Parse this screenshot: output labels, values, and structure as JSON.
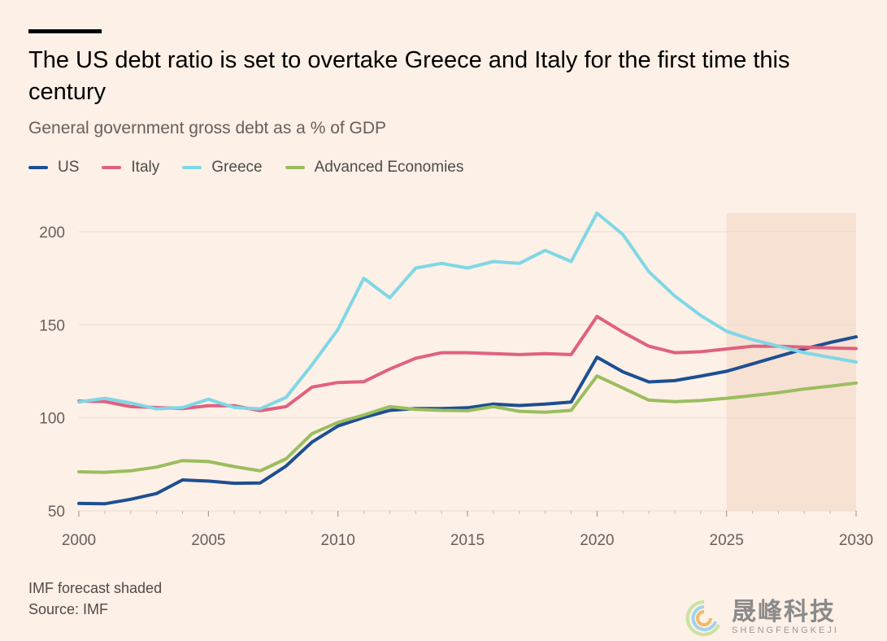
{
  "title": "The US debt ratio is set to overtake Greece and Italy for the first time this century",
  "subtitle": "General government gross debt as a % of GDP",
  "footnote": {
    "line1": "IMF forecast shaded",
    "line2": "Source: IMF"
  },
  "watermark": {
    "chinese": "晟峰科技",
    "english": "SHENGFENGKEJI"
  },
  "colors": {
    "background": "#fdf0e6",
    "grid": "#e8ddd4",
    "forecast_shade": "#f7e1d3",
    "US": "#1d4f91",
    "Italy": "#e0617f",
    "Greece": "#7fd7e6",
    "Advanced Economies": "#9bbd5e"
  },
  "chart_data": {
    "type": "line",
    "title": "The US debt ratio is set to overtake Greece and Italy for the first time this century",
    "subtitle": "General government gross debt as a % of GDP",
    "xlabel": "",
    "ylabel": "",
    "x": [
      2000,
      2001,
      2002,
      2003,
      2004,
      2005,
      2006,
      2007,
      2008,
      2009,
      2010,
      2011,
      2012,
      2013,
      2014,
      2015,
      2016,
      2017,
      2018,
      2019,
      2020,
      2021,
      2022,
      2023,
      2024,
      2025,
      2026,
      2027,
      2028,
      2029,
      2030
    ],
    "xlim": [
      2000,
      2030
    ],
    "ylim": [
      50,
      210
    ],
    "x_ticks": [
      "2000",
      "2005",
      "2010",
      "2015",
      "2020",
      "2025",
      "2030"
    ],
    "x_tick_values": [
      2000,
      2005,
      2010,
      2015,
      2020,
      2025,
      2030
    ],
    "y_ticks": [
      "50",
      "100",
      "150",
      "200"
    ],
    "y_tick_values": [
      50,
      100,
      150,
      200
    ],
    "grid": true,
    "legend_position": "top-left",
    "forecast_shaded": [
      2025,
      2030
    ],
    "series": [
      {
        "name": "US",
        "values": [
          54,
          53.8,
          56.2,
          59.3,
          66.6,
          66,
          64.8,
          65,
          74.1,
          87,
          95.6,
          100.2,
          104,
          105,
          105,
          105.4,
          107.4,
          106.6,
          107.4,
          108.5,
          132.6,
          124.7,
          119.3,
          120,
          122.4,
          125,
          129,
          133,
          137,
          140.5,
          143.5
        ]
      },
      {
        "name": "Italy",
        "values": [
          109,
          108.7,
          106,
          105.5,
          105,
          106.5,
          106.5,
          103.8,
          106,
          116.5,
          119,
          119.4,
          126.2,
          132,
          135,
          135,
          134.5,
          134,
          134.5,
          134,
          154.5,
          146,
          138.5,
          135,
          135.5,
          137,
          138.5,
          138.5,
          138,
          137.5,
          137.2
        ]
      },
      {
        "name": "Greece",
        "values": [
          108.5,
          110.5,
          108,
          104.8,
          105.5,
          110,
          105.5,
          104.8,
          111,
          128.5,
          147.5,
          175,
          164.5,
          180.5,
          183,
          180.5,
          184,
          183,
          190,
          184,
          210,
          198.5,
          178.5,
          165.5,
          155,
          146.5,
          142,
          138.5,
          135,
          132.5,
          130
        ]
      },
      {
        "name": "Advanced Economies",
        "values": [
          71,
          70.7,
          71.5,
          73.5,
          77,
          76.5,
          73.8,
          71.5,
          78,
          91.5,
          97.5,
          101.5,
          106,
          104.5,
          104,
          103.8,
          106,
          103.5,
          103,
          104,
          122.5,
          116,
          109.5,
          108.7,
          109.3,
          110.5,
          112,
          113.5,
          115.5,
          117,
          118.7
        ]
      }
    ]
  }
}
